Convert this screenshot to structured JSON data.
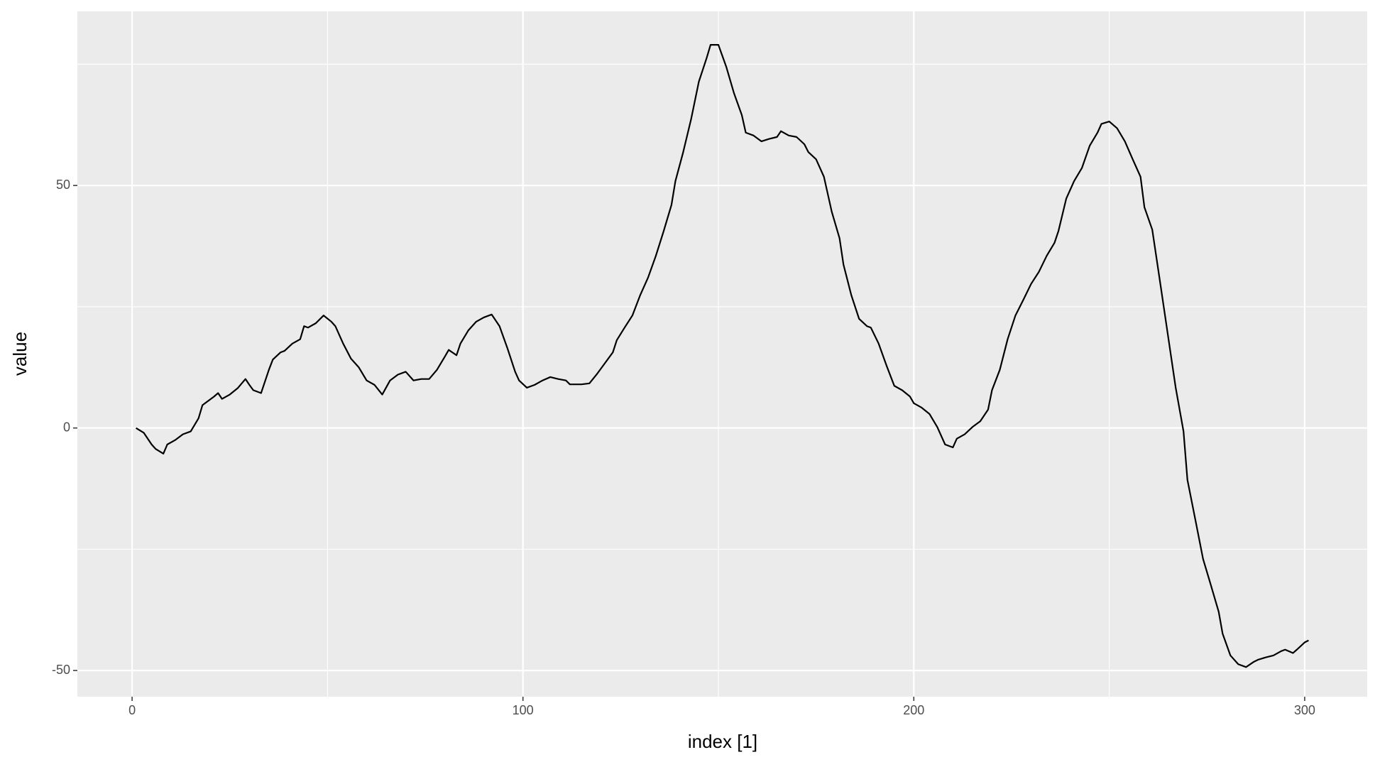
{
  "chart_data": {
    "type": "line",
    "x_label": "index [1]",
    "y_label": "value",
    "x": [
      1,
      3,
      5,
      6,
      8,
      9,
      11,
      13,
      15,
      17,
      18,
      21,
      22,
      23,
      25,
      27,
      29,
      30,
      31,
      33,
      35,
      36,
      38,
      39,
      41,
      43,
      44,
      45,
      47,
      49,
      51,
      52,
      54,
      56,
      58,
      60,
      62,
      64,
      66,
      68,
      70,
      72,
      74,
      76,
      78,
      80,
      81,
      83,
      84,
      86,
      88,
      90,
      92,
      94,
      96,
      98,
      99,
      101,
      103,
      105,
      107,
      109,
      111,
      112,
      115,
      117,
      119,
      121,
      123,
      124,
      126,
      128,
      130,
      132,
      134,
      136,
      138,
      139,
      141,
      143,
      145,
      147,
      148,
      150,
      152,
      154,
      156,
      157,
      159,
      161,
      163,
      165,
      166,
      168,
      170,
      172,
      173,
      175,
      177,
      179,
      181,
      182,
      184,
      186,
      188,
      189,
      191,
      193,
      195,
      197,
      199,
      200,
      202,
      204,
      206,
      208,
      210,
      211,
      213,
      215,
      217,
      219,
      220,
      222,
      224,
      226,
      228,
      230,
      232,
      234,
      236,
      237,
      239,
      241,
      243,
      245,
      247,
      248,
      250,
      252,
      254,
      256,
      258,
      259,
      261,
      263,
      265,
      267,
      269,
      270,
      272,
      274,
      276,
      278,
      279,
      281,
      283,
      285,
      287,
      288,
      290,
      292,
      294,
      295,
      297,
      298,
      300,
      301
    ],
    "series": [
      {
        "name": "value",
        "color": "#000000",
        "values": [
          0,
          -1,
          -3.4,
          -4.3,
          -5.3,
          -3.4,
          -2.5,
          -1.3,
          -0.7,
          2,
          4.7,
          6.5,
          7.2,
          6,
          6.9,
          8.2,
          10.1,
          8.9,
          7.8,
          7.2,
          12,
          14.1,
          15.6,
          15.9,
          17.4,
          18.3,
          21,
          20.7,
          21.6,
          23.2,
          21.9,
          21,
          17.4,
          14.3,
          12.5,
          9.8,
          8.9,
          6.9,
          9.8,
          11,
          11.6,
          9.8,
          10.1,
          10.1,
          12,
          14.7,
          16.1,
          15,
          17.4,
          20.1,
          21.9,
          22.8,
          23.4,
          21,
          16.5,
          11.6,
          9.8,
          8.3,
          8.9,
          9.8,
          10.5,
          10.1,
          9.8,
          9,
          9,
          9.2,
          11.2,
          13.4,
          15.6,
          18.1,
          20.7,
          23.2,
          27.4,
          31,
          35.5,
          40.6,
          46,
          50.9,
          56.9,
          63.6,
          71.4,
          76.3,
          79,
          79,
          74.5,
          69,
          64.5,
          60.9,
          60.3,
          59.1,
          59.6,
          60,
          61.2,
          60.3,
          60,
          58.5,
          56.9,
          55.4,
          51.8,
          44.6,
          39.1,
          33.7,
          27.4,
          22.5,
          21,
          20.7,
          17.4,
          12.9,
          8.7,
          7.8,
          6.5,
          5.1,
          4.2,
          2.9,
          0.2,
          -3.4,
          -4,
          -2.2,
          -1.3,
          0.2,
          1.4,
          3.8,
          7.8,
          12,
          18.3,
          23.2,
          26.4,
          29.7,
          32.2,
          35.5,
          38.2,
          40.6,
          47.3,
          50.9,
          53.6,
          58.2,
          60.9,
          62.7,
          63.2,
          61.8,
          59.1,
          55.4,
          51.8,
          45.5,
          40.9,
          30.1,
          19.2,
          8.3,
          -0.7,
          -10.7,
          -18.8,
          -27,
          -32.4,
          -37.9,
          -42.4,
          -46.9,
          -48.7,
          -49.3,
          -48.2,
          -47.8,
          -47.3,
          -46.9,
          -46,
          -45.7,
          -46.4,
          -45.7,
          -44.2,
          -43.8
        ]
      }
    ],
    "xlim": [
      -14,
      316
    ],
    "xticks": [
      0,
      100,
      200,
      300
    ],
    "ylim": [
      -55.4,
      85.9
    ],
    "yticks": [
      -50,
      0,
      50
    ],
    "grid": true
  }
}
